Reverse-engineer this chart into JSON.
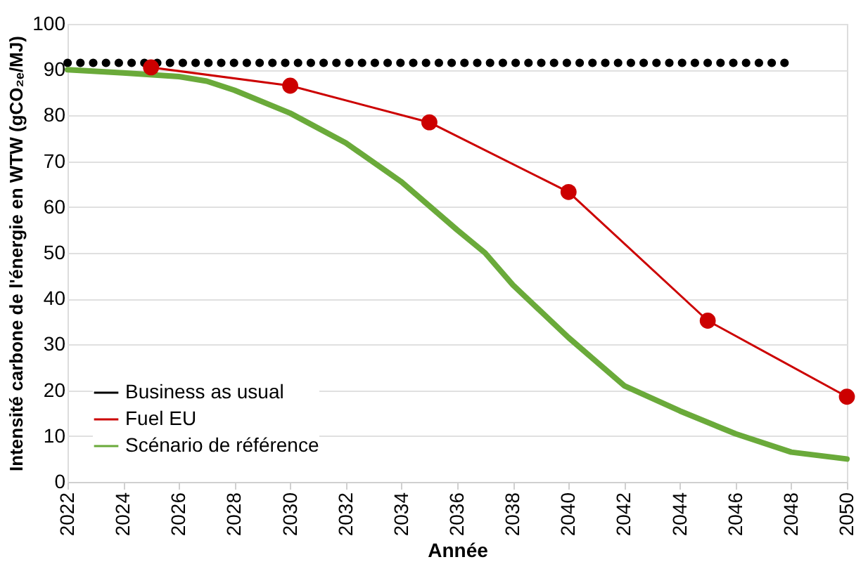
{
  "chart_data": {
    "type": "line",
    "xlabel": "Année",
    "ylabel": "Intensité carbone de l'énergie en WTW (gCO₂ₑ/MJ)",
    "xlim": [
      2022,
      2050
    ],
    "xticks": [
      2022,
      2024,
      2026,
      2028,
      2030,
      2032,
      2034,
      2036,
      2038,
      2040,
      2042,
      2044,
      2046,
      2048,
      2050
    ],
    "ylim": [
      0,
      100
    ],
    "yticks": [
      0,
      10,
      20,
      30,
      40,
      50,
      60,
      70,
      80,
      90,
      100
    ],
    "grid": "y",
    "legend": "bottom left",
    "series": [
      {
        "name": "Business as usual",
        "color": "#000000",
        "line_style": "dotted",
        "marker": "none",
        "x": [
          2022,
          2023,
          2024,
          2025,
          2026,
          2027,
          2028,
          2029,
          2030,
          2031,
          2032,
          2033,
          2034,
          2035,
          2036,
          2037,
          2038,
          2039,
          2040,
          2041,
          2042,
          2043,
          2044,
          2045,
          2046,
          2047,
          2048
        ],
        "values": [
          91.5,
          91.5,
          91.5,
          91.5,
          91.5,
          91.5,
          91.5,
          91.5,
          91.5,
          91.5,
          91.5,
          91.5,
          91.5,
          91.5,
          91.5,
          91.5,
          91.5,
          91.5,
          91.5,
          91.5,
          91.5,
          91.5,
          91.5,
          91.5,
          91.5,
          91.5,
          91.5
        ]
      },
      {
        "name": "Fuel EU",
        "color": "#cc0000",
        "line_style": "solid",
        "marker": "circle",
        "x": [
          2025,
          2030,
          2035,
          2040,
          2045,
          2050
        ],
        "values": [
          90.5,
          86.5,
          78.5,
          63.3,
          35.2,
          18.6
        ]
      },
      {
        "name": "Scénario de référence",
        "color": "#6aaa3a",
        "line_style": "solid",
        "marker": "none",
        "x": [
          2022,
          2024,
          2026,
          2027,
          2028,
          2030,
          2032,
          2034,
          2036,
          2037,
          2038,
          2040,
          2042,
          2044,
          2046,
          2048,
          2050
        ],
        "values": [
          90,
          89.3,
          88.5,
          87.5,
          85.5,
          80.5,
          74,
          65.5,
          55,
          50,
          43,
          31.5,
          21,
          15.5,
          10.5,
          6.5,
          5
        ]
      }
    ]
  }
}
